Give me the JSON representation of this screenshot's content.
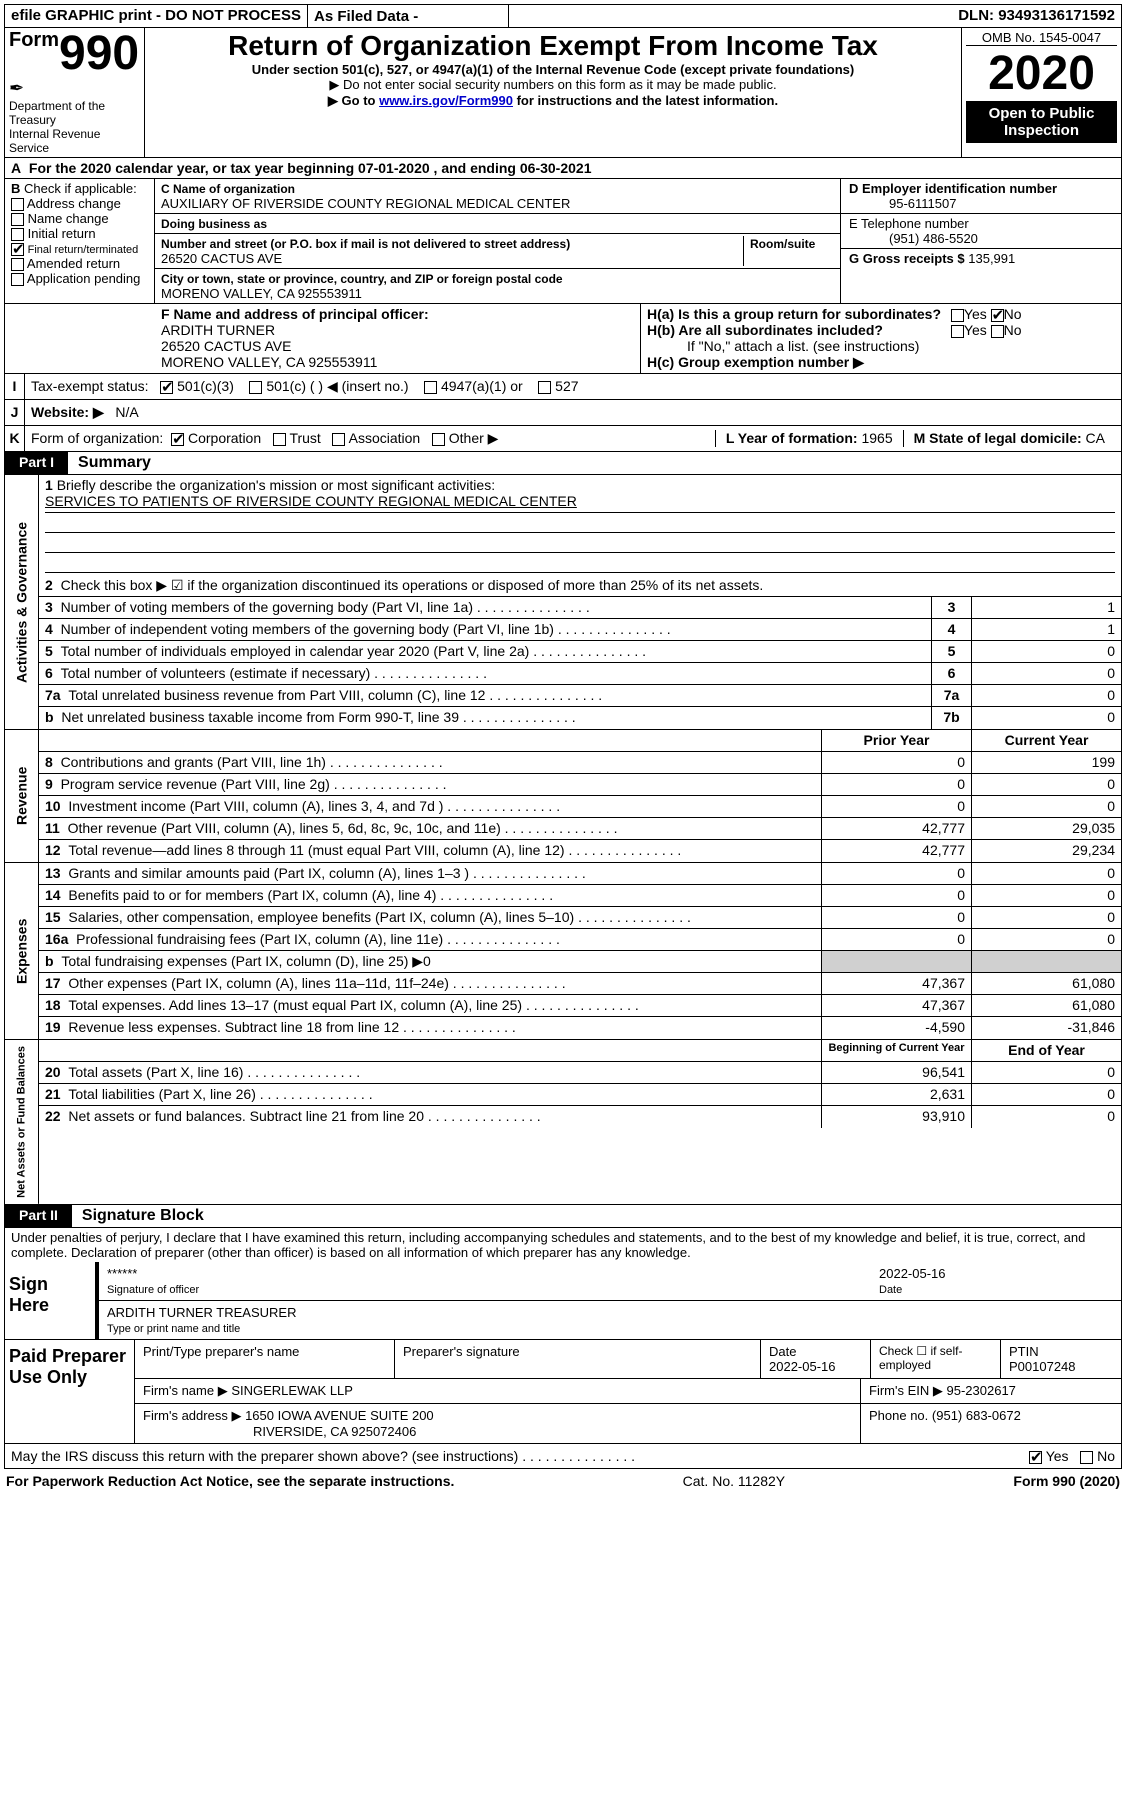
{
  "top": {
    "efile": "efile GRAPHIC print - DO NOT PROCESS",
    "asFiled": "As Filed Data -",
    "dln_label": "DLN:",
    "dln": "93493136171592"
  },
  "header": {
    "form_word": "Form",
    "form_num": "990",
    "dept": "Department of the Treasury\nInternal Revenue Service",
    "title": "Return of Organization Exempt From Income Tax",
    "sub1": "Under section 501(c), 527, or 4947(a)(1) of the Internal Revenue Code (except private foundations)",
    "sub2": "▶ Do not enter social security numbers on this form as it may be made public.",
    "sub3_pre": "▶ Go to ",
    "sub3_link": "www.irs.gov/Form990",
    "sub3_post": " for instructions and the latest information.",
    "omb": "OMB No. 1545-0047",
    "year": "2020",
    "opi": "Open to Public Inspection"
  },
  "period": {
    "text": "For the 2020 calendar year, or tax year beginning 07-01-2020   , and ending 06-30-2021",
    "A": "A"
  },
  "sectionB": {
    "label": "Check if applicable:",
    "items": [
      "Address change",
      "Name change",
      "Initial return",
      "Final return/terminated",
      "Amended return",
      "Application pending"
    ],
    "checked_index": 3
  },
  "sectionC": {
    "nameLabel": "C Name of organization",
    "name": "AUXILIARY OF RIVERSIDE COUNTY REGIONAL MEDICAL CENTER",
    "dbaLabel": "Doing business as",
    "addrLabel": "Number and street (or P.O. box if mail is not delivered to street address)",
    "roomLabel": "Room/suite",
    "addr": "26520 CACTUS AVE",
    "cityLabel": "City or town, state or province, country, and ZIP or foreign postal code",
    "city": "MORENO VALLEY, CA  925553911"
  },
  "sectionD": {
    "label": "D Employer identification number",
    "ein": "95-6111507",
    "phoneLabel": "E Telephone number",
    "phone": "(951) 486-5520",
    "grossLabel": "G Gross receipts $",
    "gross": "135,991"
  },
  "sectionF": {
    "label": "F  Name and address of principal officer:",
    "name": "ARDITH TURNER",
    "addr": "26520 CACTUS AVE",
    "city": "MORENO VALLEY, CA  925553911"
  },
  "sectionH": {
    "ha": "H(a)  Is this a group return for subordinates?",
    "hb": "H(b)  Are all subordinates included?",
    "hnote": "If \"No,\" attach a list. (see instructions)",
    "hc": "H(c)  Group exemption number ▶",
    "yes": "Yes",
    "no": "No"
  },
  "statusI": {
    "label": "Tax-exempt status:",
    "opt1": "501(c)(3)",
    "opt2": "501(c) (  ) ◀ (insert no.)",
    "opt3": "4947(a)(1) or",
    "opt4": "527"
  },
  "statusJ": {
    "label": "Website: ▶",
    "val": "N/A"
  },
  "statusK": {
    "label": "Form of organization:",
    "opts": [
      "Corporation",
      "Trust",
      "Association",
      "Other ▶"
    ]
  },
  "statusL": {
    "label": "L Year of formation:",
    "val": "1965"
  },
  "statusM": {
    "label": "M State of legal domicile:",
    "val": "CA"
  },
  "partI": {
    "tab": "Part I",
    "title": "Summary",
    "q1": "Briefly describe the organization's mission or most significant activities:",
    "mission": "SERVICES TO PATIENTS OF RIVERSIDE COUNTY REGIONAL MEDICAL CENTER",
    "q2": "Check this box ▶ ☑ if the organization discontinued its operations or disposed of more than 25% of its net assets.",
    "vlabels": [
      "Activities & Governance",
      "Revenue",
      "Expenses",
      "Net Assets or Fund Balances"
    ],
    "gov_rows": [
      {
        "n": "3",
        "t": "Number of voting members of the governing body (Part VI, line 1a)",
        "rn": "3",
        "v": "1"
      },
      {
        "n": "4",
        "t": "Number of independent voting members of the governing body (Part VI, line 1b)",
        "rn": "4",
        "v": "1"
      },
      {
        "n": "5",
        "t": "Total number of individuals employed in calendar year 2020 (Part V, line 2a)",
        "rn": "5",
        "v": "0"
      },
      {
        "n": "6",
        "t": "Total number of volunteers (estimate if necessary)",
        "rn": "6",
        "v": "0"
      },
      {
        "n": "7a",
        "t": "Total unrelated business revenue from Part VIII, column (C), line 12",
        "rn": "7a",
        "v": "0"
      },
      {
        "n": "b",
        "t": "Net unrelated business taxable income from Form 990-T, line 39",
        "rn": "7b",
        "v": "0"
      }
    ],
    "py": "Prior Year",
    "cy": "Current Year",
    "rev_rows": [
      {
        "n": "8",
        "t": "Contributions and grants (Part VIII, line 1h)",
        "py": "0",
        "cy": "199"
      },
      {
        "n": "9",
        "t": "Program service revenue (Part VIII, line 2g)",
        "py": "0",
        "cy": "0"
      },
      {
        "n": "10",
        "t": "Investment income (Part VIII, column (A), lines 3, 4, and 7d )",
        "py": "0",
        "cy": "0"
      },
      {
        "n": "11",
        "t": "Other revenue (Part VIII, column (A), lines 5, 6d, 8c, 9c, 10c, and 11e)",
        "py": "42,777",
        "cy": "29,035"
      },
      {
        "n": "12",
        "t": "Total revenue—add lines 8 through 11 (must equal Part VIII, column (A), line 12)",
        "py": "42,777",
        "cy": "29,234"
      }
    ],
    "exp_rows": [
      {
        "n": "13",
        "t": "Grants and similar amounts paid (Part IX, column (A), lines 1–3 )",
        "py": "0",
        "cy": "0"
      },
      {
        "n": "14",
        "t": "Benefits paid to or for members (Part IX, column (A), line 4)",
        "py": "0",
        "cy": "0"
      },
      {
        "n": "15",
        "t": "Salaries, other compensation, employee benefits (Part IX, column (A), lines 5–10)",
        "py": "0",
        "cy": "0"
      },
      {
        "n": "16a",
        "t": "Professional fundraising fees (Part IX, column (A), line 11e)",
        "py": "0",
        "cy": "0"
      },
      {
        "n": "b",
        "t": "Total fundraising expenses (Part IX, column (D), line 25) ▶0",
        "py": "",
        "cy": "",
        "grey": true
      },
      {
        "n": "17",
        "t": "Other expenses (Part IX, column (A), lines 11a–11d, 11f–24e)",
        "py": "47,367",
        "cy": "61,080"
      },
      {
        "n": "18",
        "t": "Total expenses. Add lines 13–17 (must equal Part IX, column (A), line 25)",
        "py": "47,367",
        "cy": "61,080"
      },
      {
        "n": "19",
        "t": "Revenue less expenses. Subtract line 18 from line 12",
        "py": "-4,590",
        "cy": "-31,846"
      }
    ],
    "na_hdr": {
      "py": "Beginning of Current Year",
      "cy": "End of Year"
    },
    "na_rows": [
      {
        "n": "20",
        "t": "Total assets (Part X, line 16)",
        "py": "96,541",
        "cy": "0"
      },
      {
        "n": "21",
        "t": "Total liabilities (Part X, line 26)",
        "py": "2,631",
        "cy": "0"
      },
      {
        "n": "22",
        "t": "Net assets or fund balances. Subtract line 21 from line 20",
        "py": "93,910",
        "cy": "0"
      }
    ]
  },
  "partII": {
    "tab": "Part II",
    "title": "Signature Block",
    "perjury": "Under penalties of perjury, I declare that I have examined this return, including accompanying schedules and statements, and to the best of my knowledge and belief, it is true, correct, and complete. Declaration of preparer (other than officer) is based on all information of which preparer has any knowledge."
  },
  "sign": {
    "label": "Sign Here",
    "stars": "******",
    "sigOfficer": "Signature of officer",
    "date": "2022-05-16",
    "dateLabel": "Date",
    "name": "ARDITH TURNER  TREASURER",
    "nameLabel": "Type or print name and title"
  },
  "prep": {
    "label": "Paid Preparer Use Only",
    "h": [
      "Print/Type preparer's name",
      "Preparer's signature",
      "Date",
      "",
      "PTIN"
    ],
    "date": "2022-05-16",
    "check": "Check ☐ if self-employed",
    "ptin": "P00107248",
    "firmLabel": "Firm's name  ▶",
    "firm": "SINGERLEWAK LLP",
    "einLabel": "Firm's EIN ▶",
    "ein": "95-2302617",
    "addrLabel": "Firm's address ▶",
    "addr": "1650 IOWA AVENUE SUITE 200",
    "addr2": "RIVERSIDE, CA  925072406",
    "phoneLabel": "Phone no.",
    "phone": "(951) 683-0672"
  },
  "discuss": {
    "text": "May the IRS discuss this return with the preparer shown above? (see instructions)",
    "yes": "Yes",
    "no": "No"
  },
  "footer": {
    "left": "For Paperwork Reduction Act Notice, see the separate instructions.",
    "mid": "Cat. No. 11282Y",
    "right": "Form 990 (2020)"
  }
}
